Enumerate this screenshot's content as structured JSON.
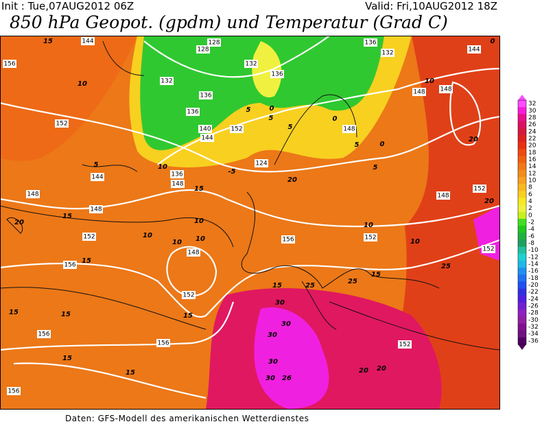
{
  "header": {
    "init": "Init : Tue,07AUG2012 06Z",
    "valid": "Valid: Fri,10AUG2012 18Z",
    "title": "850 hPa Geopot. (gpdm) und Temperatur (Grad C)"
  },
  "colorbar": {
    "levels": [
      {
        "label": "32",
        "color": "#ff4cff"
      },
      {
        "label": "30",
        "color": "#f81cd8"
      },
      {
        "label": "28",
        "color": "#e8108c"
      },
      {
        "label": "26",
        "color": "#dc1060"
      },
      {
        "label": "24",
        "color": "#d41840"
      },
      {
        "label": "22",
        "color": "#e02020"
      },
      {
        "label": "20",
        "color": "#e83010"
      },
      {
        "label": "18",
        "color": "#f04810"
      },
      {
        "label": "16",
        "color": "#f06010"
      },
      {
        "label": "14",
        "color": "#f07818"
      },
      {
        "label": "12",
        "color": "#f08c1c"
      },
      {
        "label": "10",
        "color": "#f8a020"
      },
      {
        "label": "8",
        "color": "#f8b820"
      },
      {
        "label": "6",
        "color": "#f8d020"
      },
      {
        "label": "4",
        "color": "#f8e820"
      },
      {
        "label": "2",
        "color": "#f0f040"
      },
      {
        "label": "0",
        "color": "#c8f020"
      },
      {
        "label": "-2",
        "color": "#40e020"
      },
      {
        "label": "-4",
        "color": "#20c820"
      },
      {
        "label": "-6",
        "color": "#20b040"
      },
      {
        "label": "-8",
        "color": "#20a060"
      },
      {
        "label": "-10",
        "color": "#20c0a0"
      },
      {
        "label": "-12",
        "color": "#20d0d0"
      },
      {
        "label": "-14",
        "color": "#20b8e8"
      },
      {
        "label": "-16",
        "color": "#2090f0"
      },
      {
        "label": "-18",
        "color": "#2070f0"
      },
      {
        "label": "-20",
        "color": "#2050f0"
      },
      {
        "label": "-22",
        "color": "#3030e0"
      },
      {
        "label": "-24",
        "color": "#5020e0"
      },
      {
        "label": "-26",
        "color": "#7020d0"
      },
      {
        "label": "-28",
        "color": "#9020c0"
      },
      {
        "label": "-30",
        "color": "#9020a0"
      },
      {
        "label": "-32",
        "color": "#801090"
      },
      {
        "label": "-34",
        "color": "#701080"
      },
      {
        "label": "-36",
        "color": "#500060"
      }
    ]
  },
  "map": {
    "labels": [
      "15",
      "144",
      "156",
      "10",
      "152",
      "5",
      "144",
      "148",
      "148",
      "15",
      "20",
      "152",
      "10",
      "10",
      "10",
      "148",
      "156",
      "15",
      "10",
      "15",
      "152",
      "15",
      "15",
      "15",
      "156",
      "156",
      "15",
      "15",
      "156",
      "20",
      "15",
      "25",
      "30",
      "30",
      "30",
      "30",
      "30",
      "26",
      "20",
      "152",
      "15",
      "25",
      "25",
      "152",
      "10",
      "152",
      "10",
      "156",
      "20",
      "148",
      "20",
      "152",
      "20",
      "148",
      "10",
      "148",
      "144",
      "0",
      "132",
      "136",
      "132",
      "136",
      "136",
      "140",
      "144",
      "136",
      "148",
      "10",
      "-5",
      "124",
      "128",
      "128",
      "132",
      "136",
      "0",
      "5",
      "5",
      "152",
      "5",
      "0",
      "148",
      "5",
      "0",
      "5"
    ]
  },
  "footer": "Daten: GFS-Modell des amerikanischen Wetterdienstes"
}
